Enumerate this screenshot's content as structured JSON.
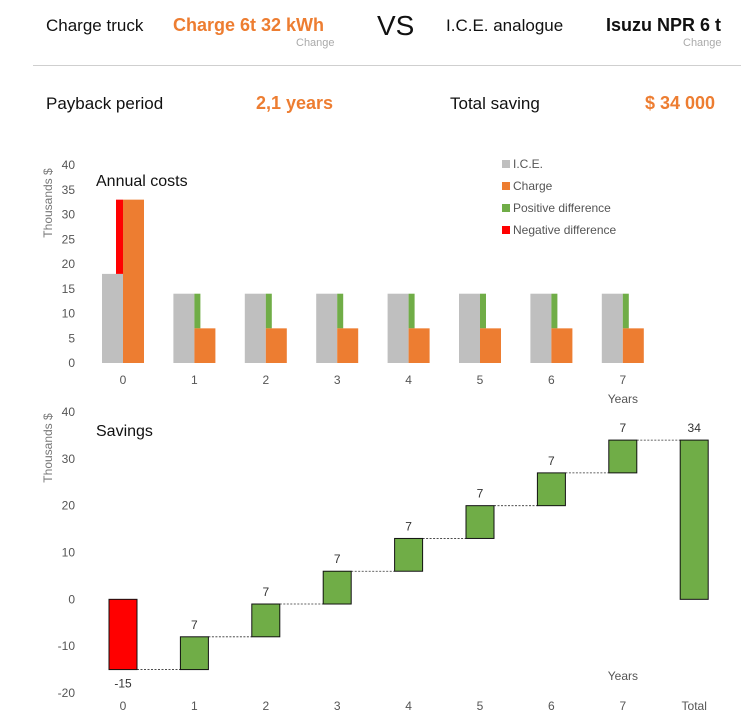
{
  "header": {
    "truck_label": "Charge truck",
    "truck_value": "Charge 6t 32 kWh",
    "truck_change": "Change",
    "vs": "VS",
    "ice_label": "I.C.E. analogue",
    "ice_value": "Isuzu NPR 6 t",
    "ice_change": "Change"
  },
  "summary": {
    "payback_label": "Payback period",
    "payback_value": "2,1 years",
    "saving_label": "Total saving",
    "saving_value": "$ 34 000"
  },
  "colors": {
    "ice": "#BFBFBF",
    "charge": "#ED7D31",
    "positive": "#70AD47",
    "negative": "#FF0000"
  },
  "chart_data": [
    {
      "type": "bar",
      "title": "Annual costs",
      "ylabel": "Thousands $",
      "xlabel": "Years",
      "ylim": [
        0,
        40
      ],
      "yticks": [
        0,
        5,
        10,
        15,
        20,
        25,
        30,
        35,
        40
      ],
      "categories": [
        "0",
        "1",
        "2",
        "3",
        "4",
        "5",
        "6",
        "7"
      ],
      "legend_position": "top-right",
      "series": [
        {
          "name": "I.C.E.",
          "values": [
            18,
            14,
            14,
            14,
            14,
            14,
            14,
            14
          ]
        },
        {
          "name": "Charge",
          "values": [
            33,
            7,
            7,
            7,
            7,
            7,
            7,
            7
          ]
        },
        {
          "name": "Positive difference",
          "values": [
            0,
            7,
            7,
            7,
            7,
            7,
            7,
            7
          ]
        },
        {
          "name": "Negative difference",
          "values": [
            15,
            0,
            0,
            0,
            0,
            0,
            0,
            0
          ]
        }
      ]
    },
    {
      "type": "bar",
      "subtype": "waterfall",
      "title": "Savings",
      "ylabel": "Thousands $",
      "xlabel": "Years",
      "ylim": [
        -20,
        40
      ],
      "yticks": [
        -20,
        -10,
        0,
        10,
        20,
        30,
        40
      ],
      "categories": [
        "0",
        "1",
        "2",
        "3",
        "4",
        "5",
        "6",
        "7",
        "Total"
      ],
      "values": [
        -15,
        7,
        7,
        7,
        7,
        7,
        7,
        7,
        34
      ],
      "labels": [
        "-15",
        "7",
        "7",
        "7",
        "7",
        "7",
        "7",
        "7",
        "34"
      ]
    }
  ]
}
